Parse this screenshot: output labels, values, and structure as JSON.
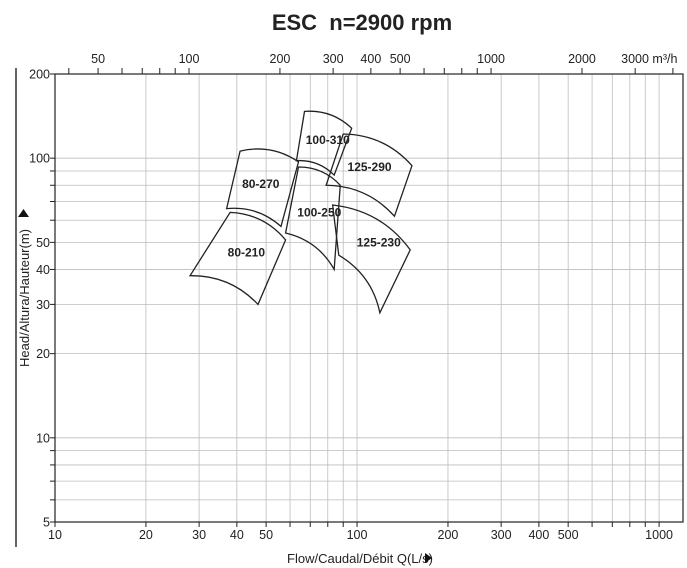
{
  "chart_data": {
    "type": "pump-performance-map",
    "title": "ESC  n=2900 rpm",
    "xlabel": "Flow/Caudal/Débit Q(L/s)",
    "ylabel": "Head/Altura/Hauteur(m)",
    "x_scale": "log",
    "y_scale": "log",
    "xlim": [
      10,
      1200
    ],
    "ylim": [
      5,
      200
    ],
    "x_ticks": [
      {
        "v": 10,
        "label": "10"
      },
      {
        "v": 20,
        "label": "20"
      },
      {
        "v": 30,
        "label": "30"
      },
      {
        "v": 40,
        "label": "40"
      },
      {
        "v": 50,
        "label": "50"
      },
      {
        "v": 100,
        "label": "100"
      },
      {
        "v": 200,
        "label": "200"
      },
      {
        "v": 300,
        "label": "300"
      },
      {
        "v": 400,
        "label": "400"
      },
      {
        "v": 500,
        "label": "500"
      },
      {
        "v": 1000,
        "label": "1000"
      }
    ],
    "top_ticks": [
      {
        "v": 50,
        "label": "50"
      },
      {
        "v": 100,
        "label": "100"
      },
      {
        "v": 200,
        "label": "200"
      },
      {
        "v": 300,
        "label": "300"
      },
      {
        "v": 400,
        "label": "400"
      },
      {
        "v": 500,
        "label": "500"
      },
      {
        "v": 1000,
        "label": "1000"
      },
      {
        "v": 2000,
        "label": "2000"
      },
      {
        "v": 3000,
        "label": "3000 m³/h"
      }
    ],
    "y_ticks": [
      {
        "v": 5,
        "label": "5"
      },
      {
        "v": 10,
        "label": "10"
      },
      {
        "v": 20,
        "label": "20"
      },
      {
        "v": 30,
        "label": "30"
      },
      {
        "v": 40,
        "label": "40"
      },
      {
        "v": 50,
        "label": "50"
      },
      {
        "v": 100,
        "label": "100"
      },
      {
        "v": 200,
        "label": "200"
      }
    ],
    "grid": true,
    "zones": [
      {
        "label": "100-310",
        "corners": [
          [
            67,
            147
          ],
          [
            96,
            128
          ],
          [
            84,
            87
          ],
          [
            63,
            98
          ]
        ],
        "label_at": [
          80,
          116
        ]
      },
      {
        "label": "125-290",
        "corners": [
          [
            90,
            122
          ],
          [
            152,
            94
          ],
          [
            133,
            62
          ],
          [
            79,
            80
          ]
        ],
        "label_at": [
          110,
          93
        ]
      },
      {
        "label": "80-270",
        "corners": [
          [
            41,
            106
          ],
          [
            64,
            97
          ],
          [
            56,
            57
          ],
          [
            37,
            66
          ]
        ],
        "label_at": [
          48,
          81
        ]
      },
      {
        "label": "100-250",
        "corners": [
          [
            64,
            93
          ],
          [
            88,
            80
          ],
          [
            84,
            40
          ],
          [
            58,
            54
          ]
        ],
        "label_at": [
          75,
          64
        ]
      },
      {
        "label": "125-230",
        "corners": [
          [
            83,
            68
          ],
          [
            150,
            47
          ],
          [
            119,
            28
          ],
          [
            87,
            45
          ]
        ],
        "label_at": [
          118,
          50
        ]
      },
      {
        "label": "80-210",
        "corners": [
          [
            38,
            64
          ],
          [
            58,
            51
          ],
          [
            47,
            30
          ],
          [
            28,
            38
          ]
        ],
        "label_at": [
          43,
          46
        ]
      }
    ]
  }
}
